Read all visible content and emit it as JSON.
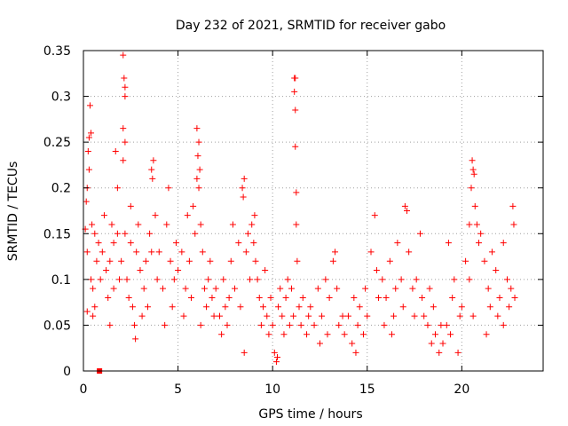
{
  "chart_data": {
    "type": "scatter",
    "title": "Day 232 of 2021, SRMTID for receiver gabo",
    "xlabel": "GPS time / hours",
    "ylabel": "SRMTID / TECUs",
    "xlim": [
      0,
      24.3
    ],
    "ylim": [
      0,
      0.35
    ],
    "x_ticks": [
      0,
      5,
      10,
      15,
      20
    ],
    "y_ticks": [
      0,
      0.05,
      0.1,
      0.15,
      0.2,
      0.25,
      0.3,
      0.35
    ],
    "x_tick_labels": [
      "0",
      "5",
      "10",
      "15",
      "20"
    ],
    "y_tick_labels": [
      "0",
      "0.05",
      "0.1",
      "0.15",
      "0.2",
      "0.25",
      "0.3",
      "0.35"
    ],
    "grid": true,
    "marker": "+",
    "color": "#ff0000",
    "special_marker": {
      "marker": "square",
      "x": 0.85,
      "y": 0.0
    },
    "series": [
      {
        "name": "SRMTID",
        "points": [
          [
            0.1,
            0.155
          ],
          [
            0.15,
            0.185
          ],
          [
            0.2,
            0.2
          ],
          [
            0.25,
            0.24
          ],
          [
            0.3,
            0.255
          ],
          [
            0.35,
            0.29
          ],
          [
            0.4,
            0.26
          ],
          [
            0.3,
            0.22
          ],
          [
            0.2,
            0.13
          ],
          [
            0.4,
            0.1
          ],
          [
            0.5,
            0.09
          ],
          [
            0.6,
            0.15
          ],
          [
            0.7,
            0.12
          ],
          [
            0.8,
            0.14
          ],
          [
            0.9,
            0.1
          ],
          [
            0.5,
            0.06
          ],
          [
            0.6,
            0.07
          ],
          [
            0.2,
            0.065
          ],
          [
            0.45,
            0.16
          ],
          [
            1.0,
            0.13
          ],
          [
            1.2,
            0.11
          ],
          [
            1.3,
            0.08
          ],
          [
            1.4,
            0.12
          ],
          [
            1.5,
            0.16
          ],
          [
            1.6,
            0.14
          ],
          [
            1.7,
            0.24
          ],
          [
            1.8,
            0.2
          ],
          [
            1.9,
            0.1
          ],
          [
            1.4,
            0.05
          ],
          [
            1.6,
            0.09
          ],
          [
            1.1,
            0.17
          ],
          [
            1.8,
            0.15
          ],
          [
            2.1,
            0.345
          ],
          [
            2.15,
            0.32
          ],
          [
            2.2,
            0.31
          ],
          [
            2.2,
            0.3
          ],
          [
            2.1,
            0.265
          ],
          [
            2.2,
            0.25
          ],
          [
            2.1,
            0.23
          ],
          [
            2.0,
            0.12
          ],
          [
            2.3,
            0.1
          ],
          [
            2.4,
            0.08
          ],
          [
            2.5,
            0.14
          ],
          [
            2.6,
            0.07
          ],
          [
            2.7,
            0.05
          ],
          [
            2.8,
            0.13
          ],
          [
            2.9,
            0.16
          ],
          [
            2.5,
            0.18
          ],
          [
            2.2,
            0.15
          ],
          [
            2.75,
            0.035
          ],
          [
            3.0,
            0.11
          ],
          [
            3.2,
            0.09
          ],
          [
            3.3,
            0.12
          ],
          [
            3.5,
            0.15
          ],
          [
            3.6,
            0.22
          ],
          [
            3.7,
            0.23
          ],
          [
            3.65,
            0.21
          ],
          [
            3.8,
            0.17
          ],
          [
            3.9,
            0.1
          ],
          [
            3.4,
            0.07
          ],
          [
            3.1,
            0.06
          ],
          [
            3.6,
            0.13
          ],
          [
            4.0,
            0.13
          ],
          [
            4.2,
            0.09
          ],
          [
            4.4,
            0.16
          ],
          [
            4.5,
            0.2
          ],
          [
            4.6,
            0.12
          ],
          [
            4.7,
            0.07
          ],
          [
            4.8,
            0.1
          ],
          [
            4.9,
            0.14
          ],
          [
            4.3,
            0.05
          ],
          [
            5.0,
            0.11
          ],
          [
            5.2,
            0.13
          ],
          [
            5.4,
            0.09
          ],
          [
            5.5,
            0.17
          ],
          [
            5.6,
            0.12
          ],
          [
            5.8,
            0.18
          ],
          [
            5.9,
            0.15
          ],
          [
            5.3,
            0.06
          ],
          [
            5.7,
            0.08
          ],
          [
            6.0,
            0.265
          ],
          [
            6.1,
            0.25
          ],
          [
            6.05,
            0.235
          ],
          [
            6.15,
            0.22
          ],
          [
            6.0,
            0.21
          ],
          [
            6.1,
            0.2
          ],
          [
            6.2,
            0.16
          ],
          [
            6.3,
            0.13
          ],
          [
            6.4,
            0.09
          ],
          [
            6.5,
            0.07
          ],
          [
            6.6,
            0.1
          ],
          [
            6.8,
            0.08
          ],
          [
            6.9,
            0.06
          ],
          [
            6.2,
            0.05
          ],
          [
            6.7,
            0.12
          ],
          [
            7.0,
            0.09
          ],
          [
            7.2,
            0.06
          ],
          [
            7.4,
            0.1
          ],
          [
            7.5,
            0.07
          ],
          [
            7.6,
            0.05
          ],
          [
            7.8,
            0.12
          ],
          [
            7.9,
            0.16
          ],
          [
            7.3,
            0.04
          ],
          [
            7.7,
            0.08
          ],
          [
            8.0,
            0.09
          ],
          [
            8.2,
            0.14
          ],
          [
            8.4,
            0.2
          ],
          [
            8.5,
            0.21
          ],
          [
            8.45,
            0.19
          ],
          [
            8.6,
            0.13
          ],
          [
            8.7,
            0.15
          ],
          [
            8.8,
            0.1
          ],
          [
            8.9,
            0.16
          ],
          [
            8.5,
            0.02
          ],
          [
            8.3,
            0.07
          ],
          [
            9.0,
            0.14
          ],
          [
            9.1,
            0.12
          ],
          [
            9.2,
            0.1
          ],
          [
            9.3,
            0.08
          ],
          [
            9.4,
            0.05
          ],
          [
            9.5,
            0.07
          ],
          [
            9.6,
            0.11
          ],
          [
            9.7,
            0.06
          ],
          [
            9.8,
            0.04
          ],
          [
            9.9,
            0.08
          ],
          [
            9.05,
            0.17
          ],
          [
            10.0,
            0.05
          ],
          [
            10.1,
            0.02
          ],
          [
            10.2,
            0.01
          ],
          [
            10.3,
            0.07
          ],
          [
            10.4,
            0.09
          ],
          [
            10.5,
            0.06
          ],
          [
            10.6,
            0.04
          ],
          [
            10.7,
            0.08
          ],
          [
            10.8,
            0.1
          ],
          [
            10.9,
            0.05
          ],
          [
            10.25,
            0.015
          ],
          [
            11.0,
            0.09
          ],
          [
            11.1,
            0.06
          ],
          [
            11.15,
            0.32
          ],
          [
            11.2,
            0.32
          ],
          [
            11.15,
            0.305
          ],
          [
            11.2,
            0.285
          ],
          [
            11.2,
            0.245
          ],
          [
            11.25,
            0.195
          ],
          [
            11.25,
            0.16
          ],
          [
            11.3,
            0.12
          ],
          [
            11.4,
            0.07
          ],
          [
            11.5,
            0.05
          ],
          [
            11.6,
            0.08
          ],
          [
            11.8,
            0.04
          ],
          [
            11.9,
            0.06
          ],
          [
            12.0,
            0.07
          ],
          [
            12.2,
            0.05
          ],
          [
            12.4,
            0.09
          ],
          [
            12.6,
            0.06
          ],
          [
            12.8,
            0.1
          ],
          [
            12.9,
            0.04
          ],
          [
            12.5,
            0.03
          ],
          [
            13.0,
            0.08
          ],
          [
            13.2,
            0.12
          ],
          [
            13.4,
            0.09
          ],
          [
            13.5,
            0.05
          ],
          [
            13.7,
            0.06
          ],
          [
            13.8,
            0.04
          ],
          [
            13.3,
            0.13
          ],
          [
            14.0,
            0.06
          ],
          [
            14.2,
            0.03
          ],
          [
            14.4,
            0.02
          ],
          [
            14.5,
            0.05
          ],
          [
            14.6,
            0.07
          ],
          [
            14.8,
            0.04
          ],
          [
            14.9,
            0.09
          ],
          [
            14.3,
            0.08
          ],
          [
            15.0,
            0.06
          ],
          [
            15.2,
            0.13
          ],
          [
            15.4,
            0.17
          ],
          [
            15.5,
            0.11
          ],
          [
            15.6,
            0.08
          ],
          [
            15.8,
            0.1
          ],
          [
            15.9,
            0.05
          ],
          [
            16.0,
            0.08
          ],
          [
            16.2,
            0.12
          ],
          [
            16.4,
            0.06
          ],
          [
            16.5,
            0.09
          ],
          [
            16.6,
            0.14
          ],
          [
            16.8,
            0.1
          ],
          [
            16.9,
            0.07
          ],
          [
            16.3,
            0.04
          ],
          [
            17.0,
            0.18
          ],
          [
            17.1,
            0.175
          ],
          [
            17.2,
            0.13
          ],
          [
            17.4,
            0.09
          ],
          [
            17.5,
            0.06
          ],
          [
            17.6,
            0.1
          ],
          [
            17.8,
            0.15
          ],
          [
            17.9,
            0.08
          ],
          [
            18.0,
            0.06
          ],
          [
            18.2,
            0.05
          ],
          [
            18.4,
            0.03
          ],
          [
            18.5,
            0.07
          ],
          [
            18.6,
            0.04
          ],
          [
            18.8,
            0.02
          ],
          [
            18.9,
            0.05
          ],
          [
            18.3,
            0.09
          ],
          [
            19.0,
            0.03
          ],
          [
            19.2,
            0.05
          ],
          [
            19.4,
            0.04
          ],
          [
            19.5,
            0.08
          ],
          [
            19.6,
            0.1
          ],
          [
            19.8,
            0.02
          ],
          [
            19.9,
            0.06
          ],
          [
            19.3,
            0.14
          ],
          [
            20.0,
            0.07
          ],
          [
            20.2,
            0.12
          ],
          [
            20.4,
            0.16
          ],
          [
            20.5,
            0.2
          ],
          [
            20.55,
            0.23
          ],
          [
            20.6,
            0.22
          ],
          [
            20.65,
            0.215
          ],
          [
            20.7,
            0.18
          ],
          [
            20.8,
            0.16
          ],
          [
            20.9,
            0.14
          ],
          [
            20.4,
            0.1
          ],
          [
            20.6,
            0.06
          ],
          [
            21.0,
            0.15
          ],
          [
            21.2,
            0.12
          ],
          [
            21.4,
            0.09
          ],
          [
            21.5,
            0.07
          ],
          [
            21.6,
            0.13
          ],
          [
            21.8,
            0.11
          ],
          [
            21.9,
            0.06
          ],
          [
            21.3,
            0.04
          ],
          [
            22.0,
            0.08
          ],
          [
            22.2,
            0.14
          ],
          [
            22.4,
            0.1
          ],
          [
            22.5,
            0.07
          ],
          [
            22.6,
            0.09
          ],
          [
            22.7,
            0.18
          ],
          [
            22.75,
            0.16
          ],
          [
            22.8,
            0.08
          ],
          [
            22.2,
            0.05
          ]
        ]
      }
    ]
  }
}
